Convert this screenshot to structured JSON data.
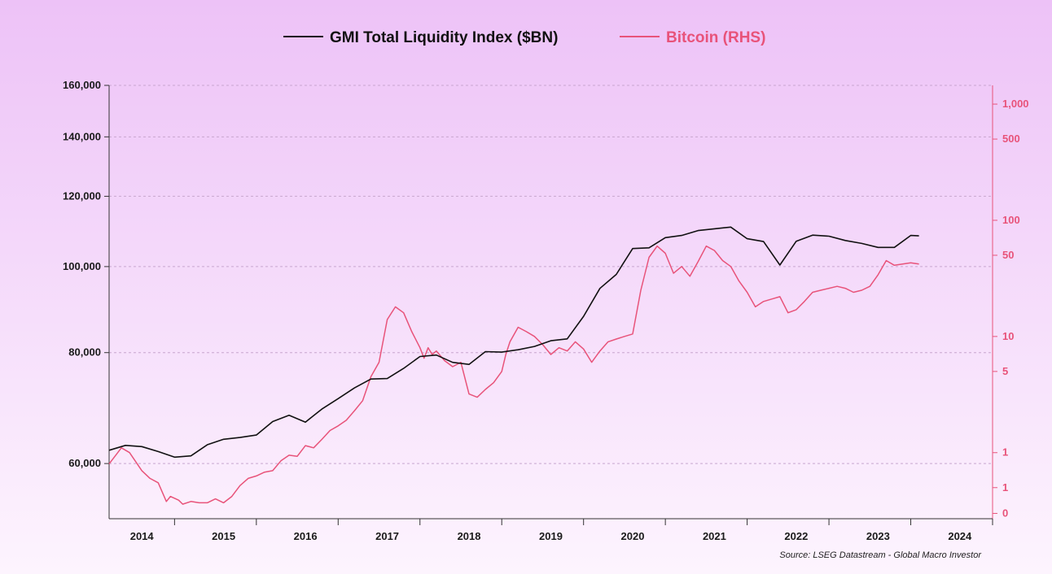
{
  "chart_data": {
    "type": "line",
    "legend": {
      "position": "top-center",
      "entries": [
        "GMI Total Liquidity Index ($BN)",
        "Bitcoin (RHS)"
      ]
    },
    "source": "Source: LSEG Datastream - Global Macro Investor",
    "colors": {
      "liquidity": "#111111",
      "bitcoin": "#e8537a",
      "grid": "#c8a6cf"
    },
    "x_axis": {
      "range": [
        2013.6,
        2024.4
      ],
      "tick_labels": [
        "2014",
        "2015",
        "2016",
        "2017",
        "2018",
        "2019",
        "2020",
        "2021",
        "2022",
        "2023",
        "2024"
      ],
      "tick_values": [
        2014.0,
        2015.0,
        2016.0,
        2017.0,
        2018.0,
        2019.0,
        2020.0,
        2021.0,
        2022.0,
        2023.0,
        2024.0
      ],
      "boundaries": [
        2014.4,
        2015.4,
        2016.4,
        2017.4,
        2018.4,
        2019.4,
        2020.4,
        2021.4,
        2022.4,
        2023.4,
        2024.4
      ]
    },
    "y_left": {
      "scale": "log",
      "range": [
        52000,
        160000
      ],
      "tick_labels": [
        "160,000",
        "140,000",
        "120,000",
        "100,000",
        "80,000",
        "60,000"
      ],
      "tick_values": [
        160000,
        140000,
        120000,
        100000,
        80000,
        60000
      ],
      "grid": true
    },
    "y_right": {
      "scale": "log",
      "range": [
        0.27,
        1450
      ],
      "tick_labels": [
        "1,000",
        "500",
        "100",
        "50",
        "10",
        "5",
        "1",
        "1",
        "0"
      ],
      "tick_values": [
        1000,
        500,
        100,
        50,
        10,
        5,
        1,
        0.5,
        0.3
      ]
    },
    "series": [
      {
        "name": "GMI Total Liquidity Index ($BN)",
        "axis": "left",
        "x": [
          2013.6,
          2013.8,
          2014.0,
          2014.2,
          2014.4,
          2014.6,
          2014.8,
          2015.0,
          2015.2,
          2015.4,
          2015.6,
          2015.8,
          2016.0,
          2016.2,
          2016.4,
          2016.6,
          2016.8,
          2017.0,
          2017.2,
          2017.4,
          2017.6,
          2017.8,
          2018.0,
          2018.2,
          2018.4,
          2018.6,
          2018.8,
          2019.0,
          2019.2,
          2019.4,
          2019.6,
          2019.8,
          2020.0,
          2020.2,
          2020.4,
          2020.6,
          2020.8,
          2021.0,
          2021.2,
          2021.4,
          2021.6,
          2021.8,
          2022.0,
          2022.2,
          2022.4,
          2022.6,
          2022.8,
          2023.0,
          2023.2,
          2023.4,
          2023.5
        ],
        "values": [
          62100,
          62900,
          62700,
          61900,
          61000,
          61200,
          63000,
          63900,
          64200,
          64600,
          66900,
          68000,
          66800,
          69100,
          71000,
          73000,
          74700,
          74800,
          76800,
          79200,
          79500,
          78000,
          77600,
          80200,
          80100,
          80600,
          81300,
          82500,
          82900,
          87900,
          94500,
          98000,
          104800,
          105000,
          107800,
          108400,
          109800,
          110300,
          110800,
          107500,
          106700,
          100400,
          106800,
          108500,
          108200,
          107000,
          106200,
          105100,
          105100,
          108400,
          108300
        ]
      },
      {
        "name": "Bitcoin (RHS)",
        "axis": "right",
        "x": [
          2013.6,
          2013.75,
          2013.85,
          2014.0,
          2014.1,
          2014.2,
          2014.3,
          2014.35,
          2014.45,
          2014.5,
          2014.6,
          2014.7,
          2014.8,
          2014.9,
          2015.0,
          2015.1,
          2015.2,
          2015.3,
          2015.4,
          2015.5,
          2015.6,
          2015.7,
          2015.8,
          2015.9,
          2016.0,
          2016.1,
          2016.2,
          2016.3,
          2016.4,
          2016.5,
          2016.6,
          2016.7,
          2016.8,
          2016.9,
          2017.0,
          2017.1,
          2017.2,
          2017.3,
          2017.4,
          2017.45,
          2017.5,
          2017.55,
          2017.6,
          2017.7,
          2017.8,
          2017.9,
          2018.0,
          2018.1,
          2018.2,
          2018.3,
          2018.4,
          2018.45,
          2018.5,
          2018.6,
          2018.7,
          2018.8,
          2018.9,
          2019.0,
          2019.1,
          2019.2,
          2019.3,
          2019.4,
          2019.5,
          2019.6,
          2019.7,
          2019.8,
          2019.9,
          2020.0,
          2020.1,
          2020.2,
          2020.3,
          2020.4,
          2020.5,
          2020.6,
          2020.7,
          2020.8,
          2020.9,
          2021.0,
          2021.1,
          2021.2,
          2021.3,
          2021.4,
          2021.5,
          2021.6,
          2021.7,
          2021.8,
          2021.9,
          2022.0,
          2022.1,
          2022.2,
          2022.3,
          2022.4,
          2022.5,
          2022.6,
          2022.7,
          2022.8,
          2022.9,
          2023.0,
          2023.1,
          2023.2,
          2023.3,
          2023.4,
          2023.5
        ],
        "values": [
          0.8,
          1.1,
          1.0,
          0.7,
          0.6,
          0.55,
          0.38,
          0.42,
          0.39,
          0.36,
          0.38,
          0.37,
          0.37,
          0.4,
          0.37,
          0.42,
          0.52,
          0.6,
          0.63,
          0.68,
          0.7,
          0.85,
          0.95,
          0.93,
          1.15,
          1.1,
          1.3,
          1.55,
          1.7,
          1.9,
          2.3,
          2.8,
          4.5,
          6.0,
          14.0,
          18.0,
          16.0,
          11.0,
          8.0,
          6.5,
          8.0,
          7.0,
          7.5,
          6.2,
          5.5,
          6.0,
          3.2,
          3.0,
          3.5,
          4.0,
          5.0,
          7.0,
          9.0,
          12.0,
          11.0,
          10.0,
          8.5,
          7.0,
          8.0,
          7.5,
          9.0,
          7.8,
          6.0,
          7.5,
          9.0,
          9.5,
          10.0,
          10.5,
          25.0,
          48.0,
          60.0,
          52.0,
          35.0,
          40.0,
          33.0,
          44.0,
          60.0,
          55.0,
          45.0,
          40.0,
          30.0,
          24.0,
          18.0,
          20.0,
          21.0,
          22.0,
          16.0,
          17.0,
          20.0,
          24.0,
          25.0,
          26.0,
          27.0,
          26.0,
          24.0,
          25.0,
          27.0,
          34.0,
          45.0,
          41.0,
          42.0,
          43.0,
          42.0
        ]
      }
    ]
  }
}
